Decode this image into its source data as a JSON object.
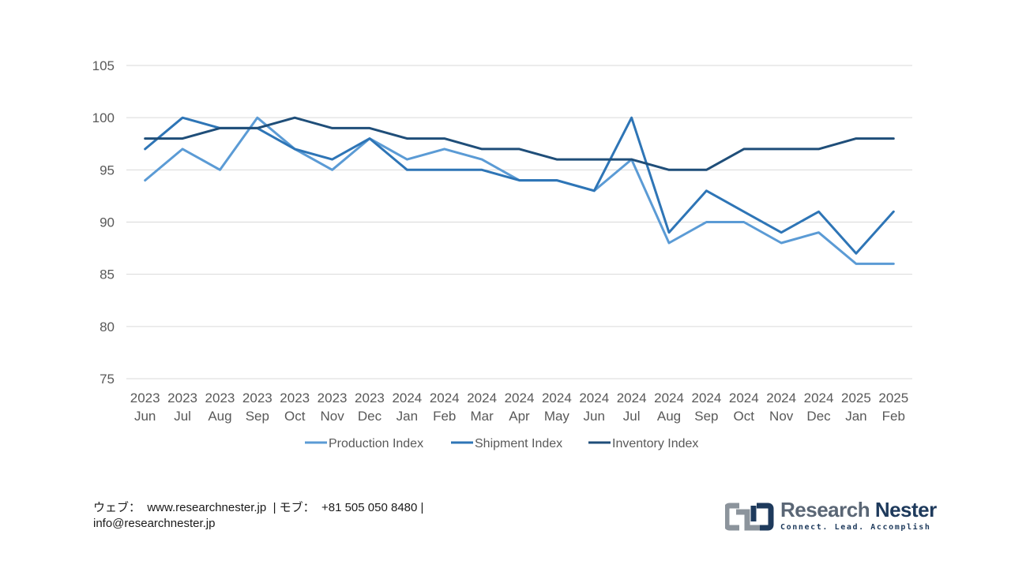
{
  "chart_data": {
    "type": "line",
    "categories": [
      [
        "2023",
        "Jun"
      ],
      [
        "2023",
        "Jul"
      ],
      [
        "2023",
        "Aug"
      ],
      [
        "2023",
        "Sep"
      ],
      [
        "2023",
        "Oct"
      ],
      [
        "2023",
        "Nov"
      ],
      [
        "2023",
        "Dec"
      ],
      [
        "2024",
        "Jan"
      ],
      [
        "2024",
        "Feb"
      ],
      [
        "2024",
        "Mar"
      ],
      [
        "2024",
        "Apr"
      ],
      [
        "2024",
        "May"
      ],
      [
        "2024",
        "Jun"
      ],
      [
        "2024",
        "Jul"
      ],
      [
        "2024",
        "Aug"
      ],
      [
        "2024",
        "Sep"
      ],
      [
        "2024",
        "Oct"
      ],
      [
        "2024",
        "Nov"
      ],
      [
        "2024",
        "Dec"
      ],
      [
        "2025",
        "Jan"
      ],
      [
        "2025",
        "Feb"
      ]
    ],
    "series": [
      {
        "name": "Production Index",
        "color": "#5b9bd5",
        "values": [
          94,
          97,
          95,
          100,
          97,
          95,
          98,
          96,
          97,
          96,
          94,
          94,
          93,
          96,
          88,
          90,
          90,
          88,
          89,
          86,
          86
        ]
      },
      {
        "name": "Shipment Index",
        "color": "#2e75b6",
        "values": [
          97,
          100,
          99,
          99,
          97,
          96,
          98,
          95,
          95,
          95,
          94,
          94,
          93,
          100,
          89,
          93,
          91,
          89,
          91,
          87,
          91
        ]
      },
      {
        "name": "Inventory Index",
        "color": "#1f4e79",
        "values": [
          98,
          98,
          99,
          99,
          100,
          99,
          99,
          98,
          98,
          97,
          97,
          96,
          96,
          96,
          95,
          95,
          97,
          97,
          97,
          98,
          98
        ]
      }
    ],
    "yticks": [
      "75",
      "80",
      "85",
      "90",
      "95",
      "100",
      "105"
    ],
    "ylim": [
      75,
      105
    ],
    "grid": true,
    "legend": "bottom"
  },
  "footer": {
    "line1": "ウェブ：  www.researchnester.jp  | モブ：  +81 505 050 8480 |",
    "line2": "info@researchnester.jp"
  },
  "logo": {
    "name_part1": "Research",
    "name_part2": "Nester",
    "tagline": "Connect. Lead. Accomplish"
  }
}
